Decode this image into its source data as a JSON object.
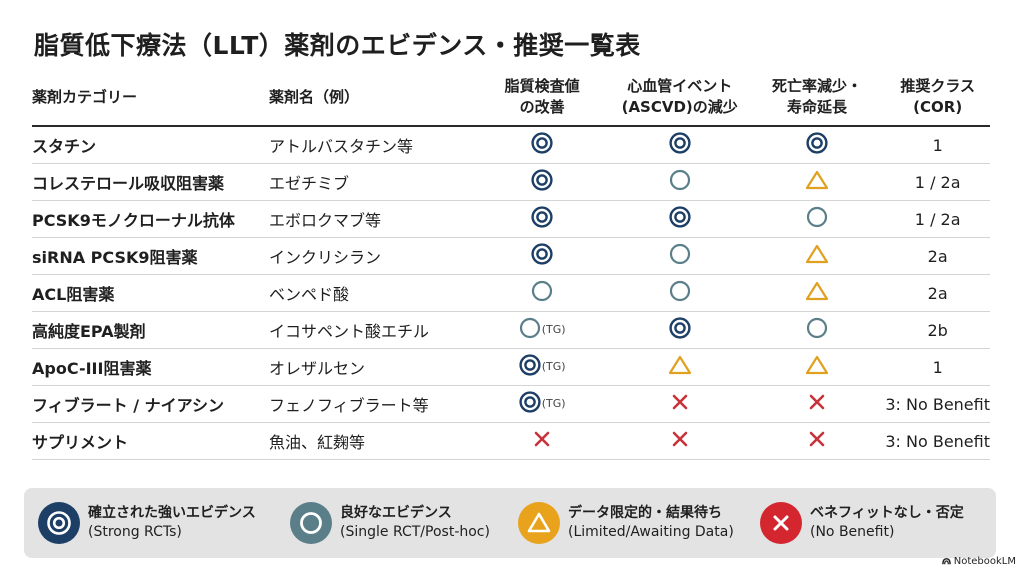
{
  "title": "脂質低下療法（LLT）薬剤のエビデンス・推奨一覧表",
  "headers": {
    "category": "薬剤カテゴリー",
    "drug": "薬剤名（例）",
    "lipid_line1": "脂質検査値",
    "lipid_line2": "の改善",
    "cv_line1": "心血管イベント",
    "cv_line2": "(ASCVD)の減少",
    "mort_line1": "死亡率減少・",
    "mort_line2": "寿命延長",
    "cor_line1": "推奨クラス",
    "cor_line2": "(COR)"
  },
  "rows": [
    {
      "category": "スタチン",
      "drug": "アトルバスタチン等",
      "lipid": "strong",
      "lipid_note": "",
      "cv": "strong",
      "mortality": "strong",
      "cor": "1"
    },
    {
      "category": "コレステロール吸収阻害薬",
      "drug": "エゼチミブ",
      "lipid": "strong",
      "lipid_note": "",
      "cv": "good",
      "mortality": "limited",
      "cor": "1 / 2a"
    },
    {
      "category": "PCSK9モノクローナル抗体",
      "drug": "エボロクマブ等",
      "lipid": "strong",
      "lipid_note": "",
      "cv": "strong",
      "mortality": "good",
      "cor": "1 / 2a"
    },
    {
      "category": "siRNA PCSK9阻害薬",
      "drug": "インクリシラン",
      "lipid": "strong",
      "lipid_note": "",
      "cv": "good",
      "mortality": "limited",
      "cor": "2a"
    },
    {
      "category": "ACL阻害薬",
      "drug": "ベンペド酸",
      "lipid": "good",
      "lipid_note": "",
      "cv": "good",
      "mortality": "limited",
      "cor": "2a"
    },
    {
      "category": "高純度EPA製剤",
      "drug": "イコサペント酸エチル",
      "lipid": "good",
      "lipid_note": "(TG)",
      "cv": "strong",
      "mortality": "good",
      "cor": "2b"
    },
    {
      "category": "ApoC-III阻害薬",
      "drug": "オレザルセン",
      "lipid": "strong",
      "lipid_note": "(TG)",
      "cv": "limited",
      "mortality": "limited",
      "cor": "1"
    },
    {
      "category": "フィブラート / ナイアシン",
      "drug": "フェノフィブラート等",
      "lipid": "strong",
      "lipid_note": "(TG)",
      "cv": "none",
      "mortality": "none",
      "cor": "3: No Benefit"
    },
    {
      "category": "サプリメント",
      "drug": "魚油、紅麹等",
      "lipid": "none",
      "lipid_note": "",
      "cv": "none",
      "mortality": "none",
      "cor": "3: No Benefit"
    }
  ],
  "legend": [
    {
      "type": "strong",
      "jp": "確立された強いエビデンス",
      "en": "(Strong RCTs)",
      "color": "#1d3f66"
    },
    {
      "type": "good",
      "jp": "良好なエビデンス",
      "en": "(Single RCT/Post-hoc)",
      "color": "#5b7f89"
    },
    {
      "type": "limited",
      "jp": "データ限定的・結果待ち",
      "en": "(Limited/Awaiting Data)",
      "color": "#e9a21b"
    },
    {
      "type": "none",
      "jp": "ベネフィットなし・否定",
      "en": "(No Benefit)",
      "color": "#d4262f"
    }
  ],
  "colors": {
    "strong": "#1d3f66",
    "good": "#5b7f89",
    "limited": "#e0a020",
    "none": "#c8323a"
  },
  "brand": "NotebookLM"
}
